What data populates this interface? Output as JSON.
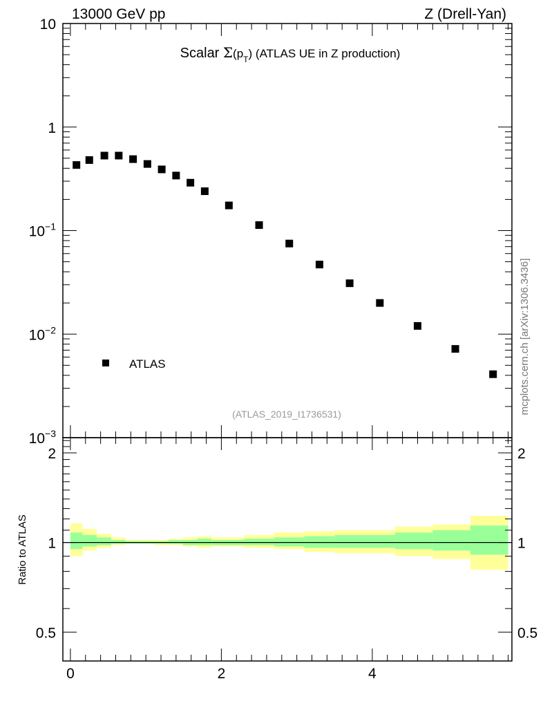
{
  "header": {
    "left": "13000 GeV pp",
    "right": "Z (Drell-Yan)"
  },
  "plot_title": {
    "prefix": "Scalar ",
    "sigma": "Σ",
    "open": "(p",
    "sub": "T",
    "close": ")",
    "suffix": " (ATLAS UE in Z production)"
  },
  "analysis_tag": "(ATLAS_2019_I1736531)",
  "side_credit": "mcplots.cern.ch [arXiv:1306.3436]",
  "colors": {
    "marker": "#000000",
    "band_inner": "#99ff99",
    "band_outer": "#ffff99"
  },
  "chart_data": [
    {
      "type": "scatter",
      "y_scale": "log",
      "xlim": [
        -0.1,
        5.85
      ],
      "ylim": [
        0.001,
        10
      ],
      "y_ticks": [
        {
          "value": 10,
          "base": "10",
          "exp": ""
        },
        {
          "value": 1,
          "base": "1",
          "exp": ""
        },
        {
          "value": 0.1,
          "base": "10",
          "exp": "−1"
        },
        {
          "value": 0.01,
          "base": "10",
          "exp": "−2"
        },
        {
          "value": 0.001,
          "base": "10",
          "exp": "−3"
        }
      ],
      "legend": {
        "entries": [
          "ATLAS"
        ],
        "placement": "bottom-left"
      },
      "series": [
        {
          "name": "ATLAS",
          "marker": "square",
          "x": [
            0.08,
            0.25,
            0.45,
            0.64,
            0.83,
            1.02,
            1.21,
            1.4,
            1.59,
            1.78,
            2.1,
            2.5,
            2.9,
            3.3,
            3.7,
            4.1,
            4.6,
            5.1,
            5.6
          ],
          "y": [
            0.43,
            0.48,
            0.53,
            0.53,
            0.49,
            0.44,
            0.39,
            0.34,
            0.29,
            0.24,
            0.175,
            0.113,
            0.075,
            0.047,
            0.031,
            0.02,
            0.012,
            0.0072,
            0.0041
          ]
        }
      ]
    },
    {
      "type": "area",
      "ylabel": "Ratio to ATLAS",
      "xlim": [
        -0.1,
        5.85
      ],
      "ylim": [
        0.4,
        2.25
      ],
      "x_ticks": [
        0,
        2,
        4
      ],
      "y_ticks": [
        0.5,
        1,
        2
      ],
      "reference_line": 1,
      "bins": [
        {
          "x0": 0.0,
          "x1": 0.16,
          "inner": [
            0.95,
            1.08
          ],
          "outer": [
            0.9,
            1.16
          ]
        },
        {
          "x0": 0.16,
          "x1": 0.35,
          "inner": [
            0.97,
            1.06
          ],
          "outer": [
            0.94,
            1.11
          ]
        },
        {
          "x0": 0.35,
          "x1": 0.54,
          "inner": [
            0.98,
            1.04
          ],
          "outer": [
            0.96,
            1.07
          ]
        },
        {
          "x0": 0.54,
          "x1": 0.73,
          "inner": [
            0.99,
            1.02
          ],
          "outer": [
            0.98,
            1.04
          ]
        },
        {
          "x0": 0.73,
          "x1": 0.92,
          "inner": [
            0.99,
            1.01
          ],
          "outer": [
            0.99,
            1.02
          ]
        },
        {
          "x0": 0.92,
          "x1": 1.11,
          "inner": [
            0.99,
            1.01
          ],
          "outer": [
            0.99,
            1.02
          ]
        },
        {
          "x0": 1.11,
          "x1": 1.3,
          "inner": [
            0.99,
            1.01
          ],
          "outer": [
            0.98,
            1.02
          ]
        },
        {
          "x0": 1.3,
          "x1": 1.49,
          "inner": [
            0.99,
            1.02
          ],
          "outer": [
            0.98,
            1.03
          ]
        },
        {
          "x0": 1.49,
          "x1": 1.68,
          "inner": [
            0.98,
            1.02
          ],
          "outer": [
            0.97,
            1.04
          ]
        },
        {
          "x0": 1.68,
          "x1": 1.87,
          "inner": [
            0.98,
            1.03
          ],
          "outer": [
            0.96,
            1.05
          ]
        },
        {
          "x0": 1.87,
          "x1": 2.3,
          "inner": [
            0.98,
            1.02
          ],
          "outer": [
            0.97,
            1.04
          ]
        },
        {
          "x0": 2.3,
          "x1": 2.7,
          "inner": [
            0.98,
            1.03
          ],
          "outer": [
            0.96,
            1.06
          ]
        },
        {
          "x0": 2.7,
          "x1": 3.1,
          "inner": [
            0.97,
            1.04
          ],
          "outer": [
            0.95,
            1.08
          ]
        },
        {
          "x0": 3.1,
          "x1": 3.5,
          "inner": [
            0.96,
            1.05
          ],
          "outer": [
            0.93,
            1.09
          ]
        },
        {
          "x0": 3.5,
          "x1": 3.9,
          "inner": [
            0.96,
            1.06
          ],
          "outer": [
            0.92,
            1.1
          ]
        },
        {
          "x0": 3.9,
          "x1": 4.3,
          "inner": [
            0.96,
            1.06
          ],
          "outer": [
            0.92,
            1.1
          ]
        },
        {
          "x0": 4.3,
          "x1": 4.8,
          "inner": [
            0.95,
            1.08
          ],
          "outer": [
            0.9,
            1.13
          ]
        },
        {
          "x0": 4.8,
          "x1": 5.3,
          "inner": [
            0.94,
            1.1
          ],
          "outer": [
            0.88,
            1.15
          ]
        },
        {
          "x0": 5.3,
          "x1": 5.8,
          "inner": [
            0.91,
            1.14
          ],
          "outer": [
            0.81,
            1.23
          ]
        }
      ]
    }
  ]
}
